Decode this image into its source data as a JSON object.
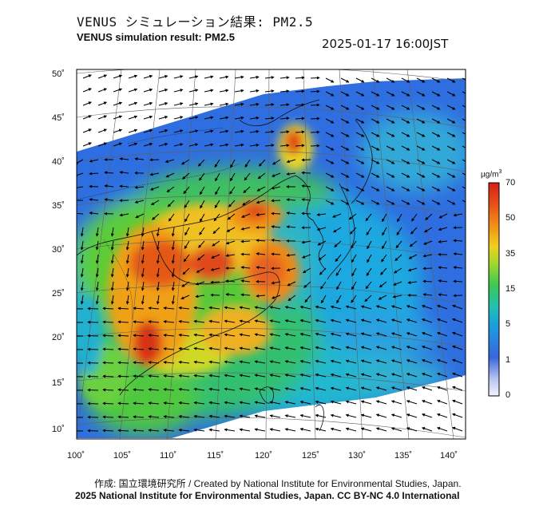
{
  "header": {
    "title_jp": "VENUS シミュレーション結果: PM2.5",
    "title_en": "VENUS simulation result: PM2.5",
    "timestamp": "2025-01-17 16:00JST"
  },
  "map": {
    "lat_labels": [
      "50˚",
      "45˚",
      "40˚",
      "35˚",
      "30˚",
      "25˚",
      "20˚",
      "15˚",
      "10˚"
    ],
    "lon_labels": [
      "100˚",
      "105˚",
      "110˚",
      "115˚",
      "120˚",
      "125˚",
      "130˚",
      "135˚",
      "140˚"
    ],
    "extent": {
      "lon": [
        100,
        142
      ],
      "lat": [
        9,
        51
      ]
    },
    "land_color": "#ffffff",
    "no_data_color": "#ffffff"
  },
  "colorbar": {
    "unit_base": "µg/m",
    "unit_sup": "3",
    "labels": [
      "70",
      "50",
      "35",
      "15",
      "5",
      "1",
      "0"
    ],
    "colors": [
      "#d9261c",
      "#f07a16",
      "#f4c21a",
      "#5cc834",
      "#1ab0c8",
      "#2a6fe0",
      "#d8dcf6"
    ]
  },
  "footer": {
    "credit": "作成: 国立環境研究所 / Created by National Institute for Environmental Studies, Japan.",
    "copyright": "2025 National Institute for Environmental Studies, Japan. CC BY-NC 4.0 International"
  }
}
